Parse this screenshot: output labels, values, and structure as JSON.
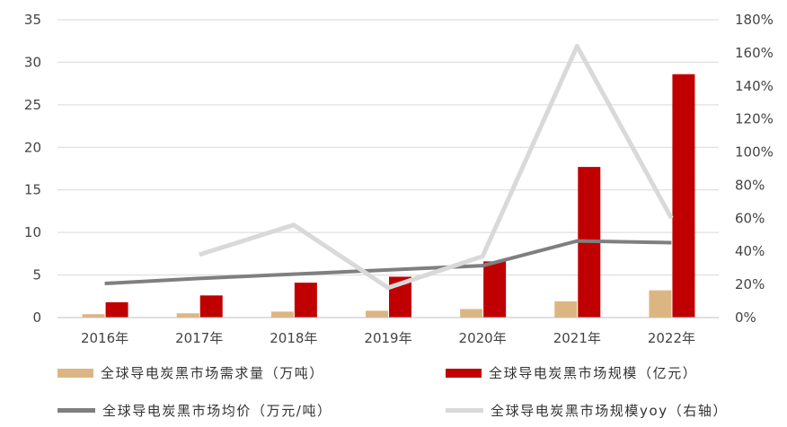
{
  "chart_data": {
    "type": "bar",
    "title": "",
    "xlabel": "",
    "ylabel": "",
    "categories": [
      "2016年",
      "2017年",
      "2018年",
      "2019年",
      "2020年",
      "2021年",
      "2022年"
    ],
    "ylim": [
      0,
      35
    ],
    "y_ticks": [
      "0",
      "5",
      "10",
      "15",
      "20",
      "25",
      "30",
      "35"
    ],
    "y2lim": [
      0,
      180
    ],
    "y2_ticks": [
      "0%",
      "20%",
      "40%",
      "60%",
      "80%",
      "100%",
      "120%",
      "140%",
      "160%",
      "180%"
    ],
    "grid": true,
    "legend_position": "bottom",
    "series": [
      {
        "name": "全球导电炭黑市场需求量（万吨）",
        "type": "bar",
        "axis": "left",
        "color": "#dcb682",
        "values": [
          0.4,
          0.5,
          0.7,
          0.8,
          1.0,
          1.9,
          3.2
        ]
      },
      {
        "name": "全球导电炭黑市场规模（亿元）",
        "type": "bar",
        "axis": "left",
        "color": "#c00000",
        "values": [
          1.8,
          2.6,
          4.1,
          4.8,
          6.6,
          17.7,
          28.6
        ]
      },
      {
        "name": "全球导电炭黑市场均价（万元/吨）",
        "type": "line",
        "axis": "left",
        "color": "#7f7f7f",
        "values": [
          4.0,
          4.6,
          5.1,
          5.6,
          6.1,
          9.0,
          8.8
        ]
      },
      {
        "name": "全球导电炭黑市场规模yoy（右轴）",
        "type": "line",
        "axis": "right",
        "color": "#d9d9d9",
        "values": [
          null,
          38,
          56,
          18,
          37,
          164,
          60
        ]
      }
    ]
  }
}
